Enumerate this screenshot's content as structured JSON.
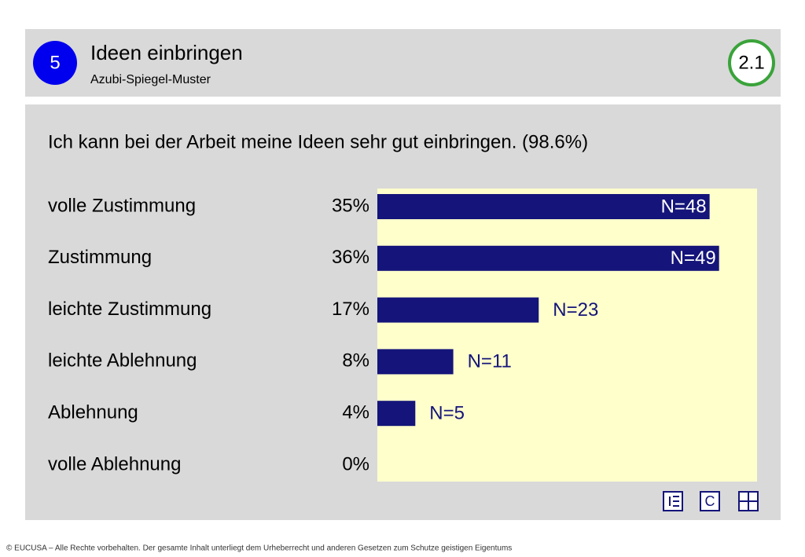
{
  "header": {
    "badge": "5",
    "title": "Ideen einbringen",
    "subtitle": "Azubi-Spiegel-Muster",
    "number": "2.1"
  },
  "chart_data": {
    "type": "bar",
    "orientation": "horizontal",
    "title": "Ich kann bei der Arbeit meine Ideen sehr gut einbringen. (98.6%)",
    "categories": [
      "volle Zustimmung",
      "Zustimmung",
      "leichte Zustimmung",
      "leichte Ablehnung",
      "Ablehnung",
      "volle Ablehnung"
    ],
    "values": [
      35,
      36,
      17,
      8,
      4,
      0
    ],
    "value_labels": [
      "35%",
      "36%",
      "17%",
      "8%",
      "4%",
      "0%"
    ],
    "n_labels": [
      "N=48",
      "N=49",
      "N=23",
      "N=11",
      "N=5",
      null
    ],
    "color": "#14147a",
    "background": "#ffffcc",
    "xlim": [
      0,
      40
    ]
  },
  "icon_label": "C",
  "footer": "© EUCUSA – Alle Rechte vorbehalten. Der gesamte Inhalt unterliegt dem Urheberrecht und anderen Gesetzen zum Schutze geistigen Eigentums"
}
